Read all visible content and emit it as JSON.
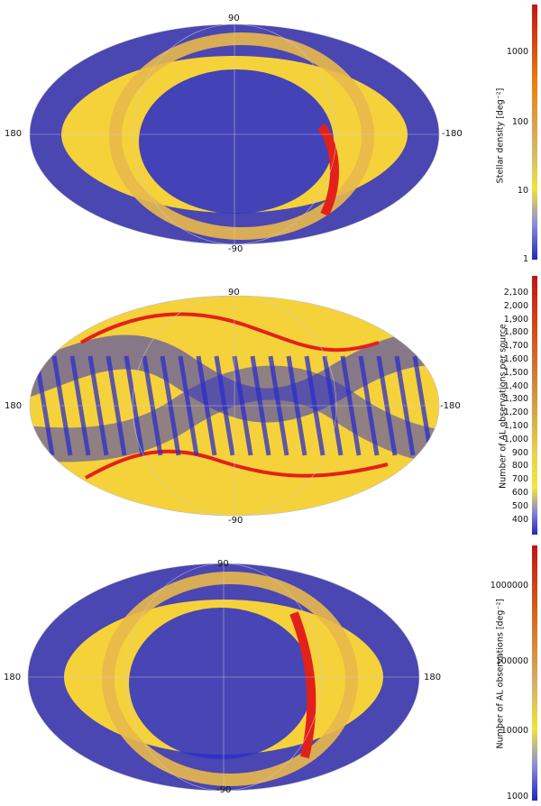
{
  "colors": {
    "blue": "#2b2ec8",
    "yellow": "#f5d23a",
    "gold": "#e8b84a",
    "red": "#e3211b",
    "grid": "#cfcfcf"
  },
  "panels": [
    {
      "lat_top": "90",
      "lat_bottom": "-90",
      "lon_left": "180",
      "lon_right": "-180",
      "pattern": "galactic-scan",
      "colorbar": {
        "title": "Stellar density [deg⁻²]",
        "scale": "log",
        "ticks": [
          "1000",
          "100",
          "10",
          "1"
        ]
      }
    },
    {
      "lat_top": "90",
      "lat_bottom": "-90",
      "lon_left": "180",
      "lon_right": "-180",
      "pattern": "scanning-law",
      "colorbar": {
        "title": "Number of AL observations per source",
        "scale": "linear",
        "ticks": [
          "2,100",
          "2,000",
          "1,900",
          "1,800",
          "1,700",
          "1,600",
          "1,500",
          "1,400",
          "1,300",
          "1,200",
          "1,100",
          "1,000",
          "900",
          "800",
          "700",
          "600",
          "500",
          "400"
        ]
      }
    },
    {
      "lat_top": "90",
      "lat_bottom": "-90",
      "lon_left": "180",
      "lon_right": "180",
      "pattern": "galactic-scan",
      "colorbar": {
        "title": "Number of AL observations [deg⁻²]",
        "scale": "log",
        "ticks": [
          "1000000",
          "100000",
          "10000",
          "1000"
        ]
      }
    }
  ]
}
